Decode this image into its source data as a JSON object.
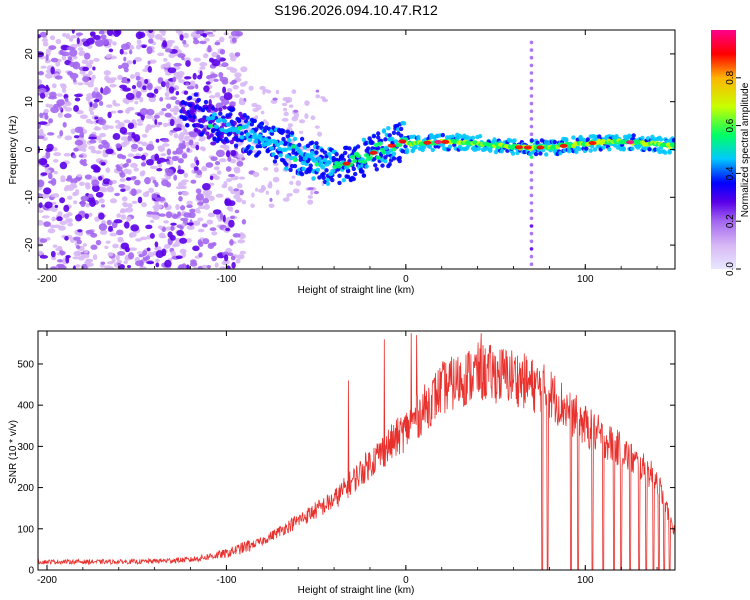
{
  "title": "S196.2026.094.10.47.R12",
  "colors": {
    "snr_line": "#e8312d",
    "colorbar_stops": [
      "#e8e8ff",
      "#d7b7f5",
      "#a366f0",
      "#5a00e8",
      "#0000ff",
      "#00c8ff",
      "#00ff64",
      "#c8ff00",
      "#ffb400",
      "#ff0000",
      "#ff008c"
    ]
  },
  "chart_data": [
    {
      "type": "heatmap",
      "id": "spectrogram",
      "xlabel": "Height of straight line (km)",
      "ylabel": "Frequency (Hz)",
      "xlim": [
        -205,
        150
      ],
      "ylim": [
        -25,
        25
      ],
      "xticks": [
        -200,
        -100,
        0,
        100
      ],
      "yticks": [
        20,
        10,
        0,
        -10,
        -20
      ],
      "colorbar": {
        "label": "Normalized spectral amplitude",
        "range": [
          0,
          1
        ],
        "ticks": [
          0.0,
          0.2,
          0.4,
          0.6,
          0.8
        ]
      },
      "features": [
        {
          "description": "scattered low-amplitude noise",
          "x_range": [
            -205,
            -95
          ],
          "y_range": [
            -25,
            25
          ]
        },
        {
          "description": "dominant signal ridge",
          "x_range": [
            -125,
            150
          ],
          "center_frequency": [
            8,
            1
          ]
        },
        {
          "description": "vertical spike",
          "x": 70,
          "y_range": [
            -25,
            25
          ]
        }
      ]
    },
    {
      "type": "line",
      "id": "snr",
      "xlabel": "Height of straight line (km)",
      "ylabel": "SNR (10 * v/v)",
      "xlim": [
        -205,
        150
      ],
      "ylim": [
        0,
        580
      ],
      "xticks": [
        -200,
        -100,
        0,
        100
      ],
      "yticks": [
        0,
        100,
        200,
        300,
        400,
        500
      ],
      "envelope": {
        "x": [
          -205,
          -150,
          -120,
          -100,
          -80,
          -60,
          -40,
          -20,
          0,
          20,
          40,
          60,
          80,
          100,
          120,
          140,
          150
        ],
        "y": [
          20,
          20,
          25,
          40,
          70,
          120,
          170,
          260,
          340,
          440,
          480,
          470,
          430,
          350,
          290,
          220,
          90
        ]
      },
      "spikes": [
        {
          "x": -32,
          "y": 460
        },
        {
          "x": -12,
          "y": 560
        },
        {
          "x": 3,
          "y": 575
        },
        {
          "x": 6,
          "y": 570
        },
        {
          "x": 42,
          "y": 575
        }
      ],
      "dropouts": [
        76,
        79,
        92,
        96,
        104,
        110,
        116,
        120,
        125,
        130,
        134,
        138,
        141,
        144,
        147
      ]
    }
  ]
}
